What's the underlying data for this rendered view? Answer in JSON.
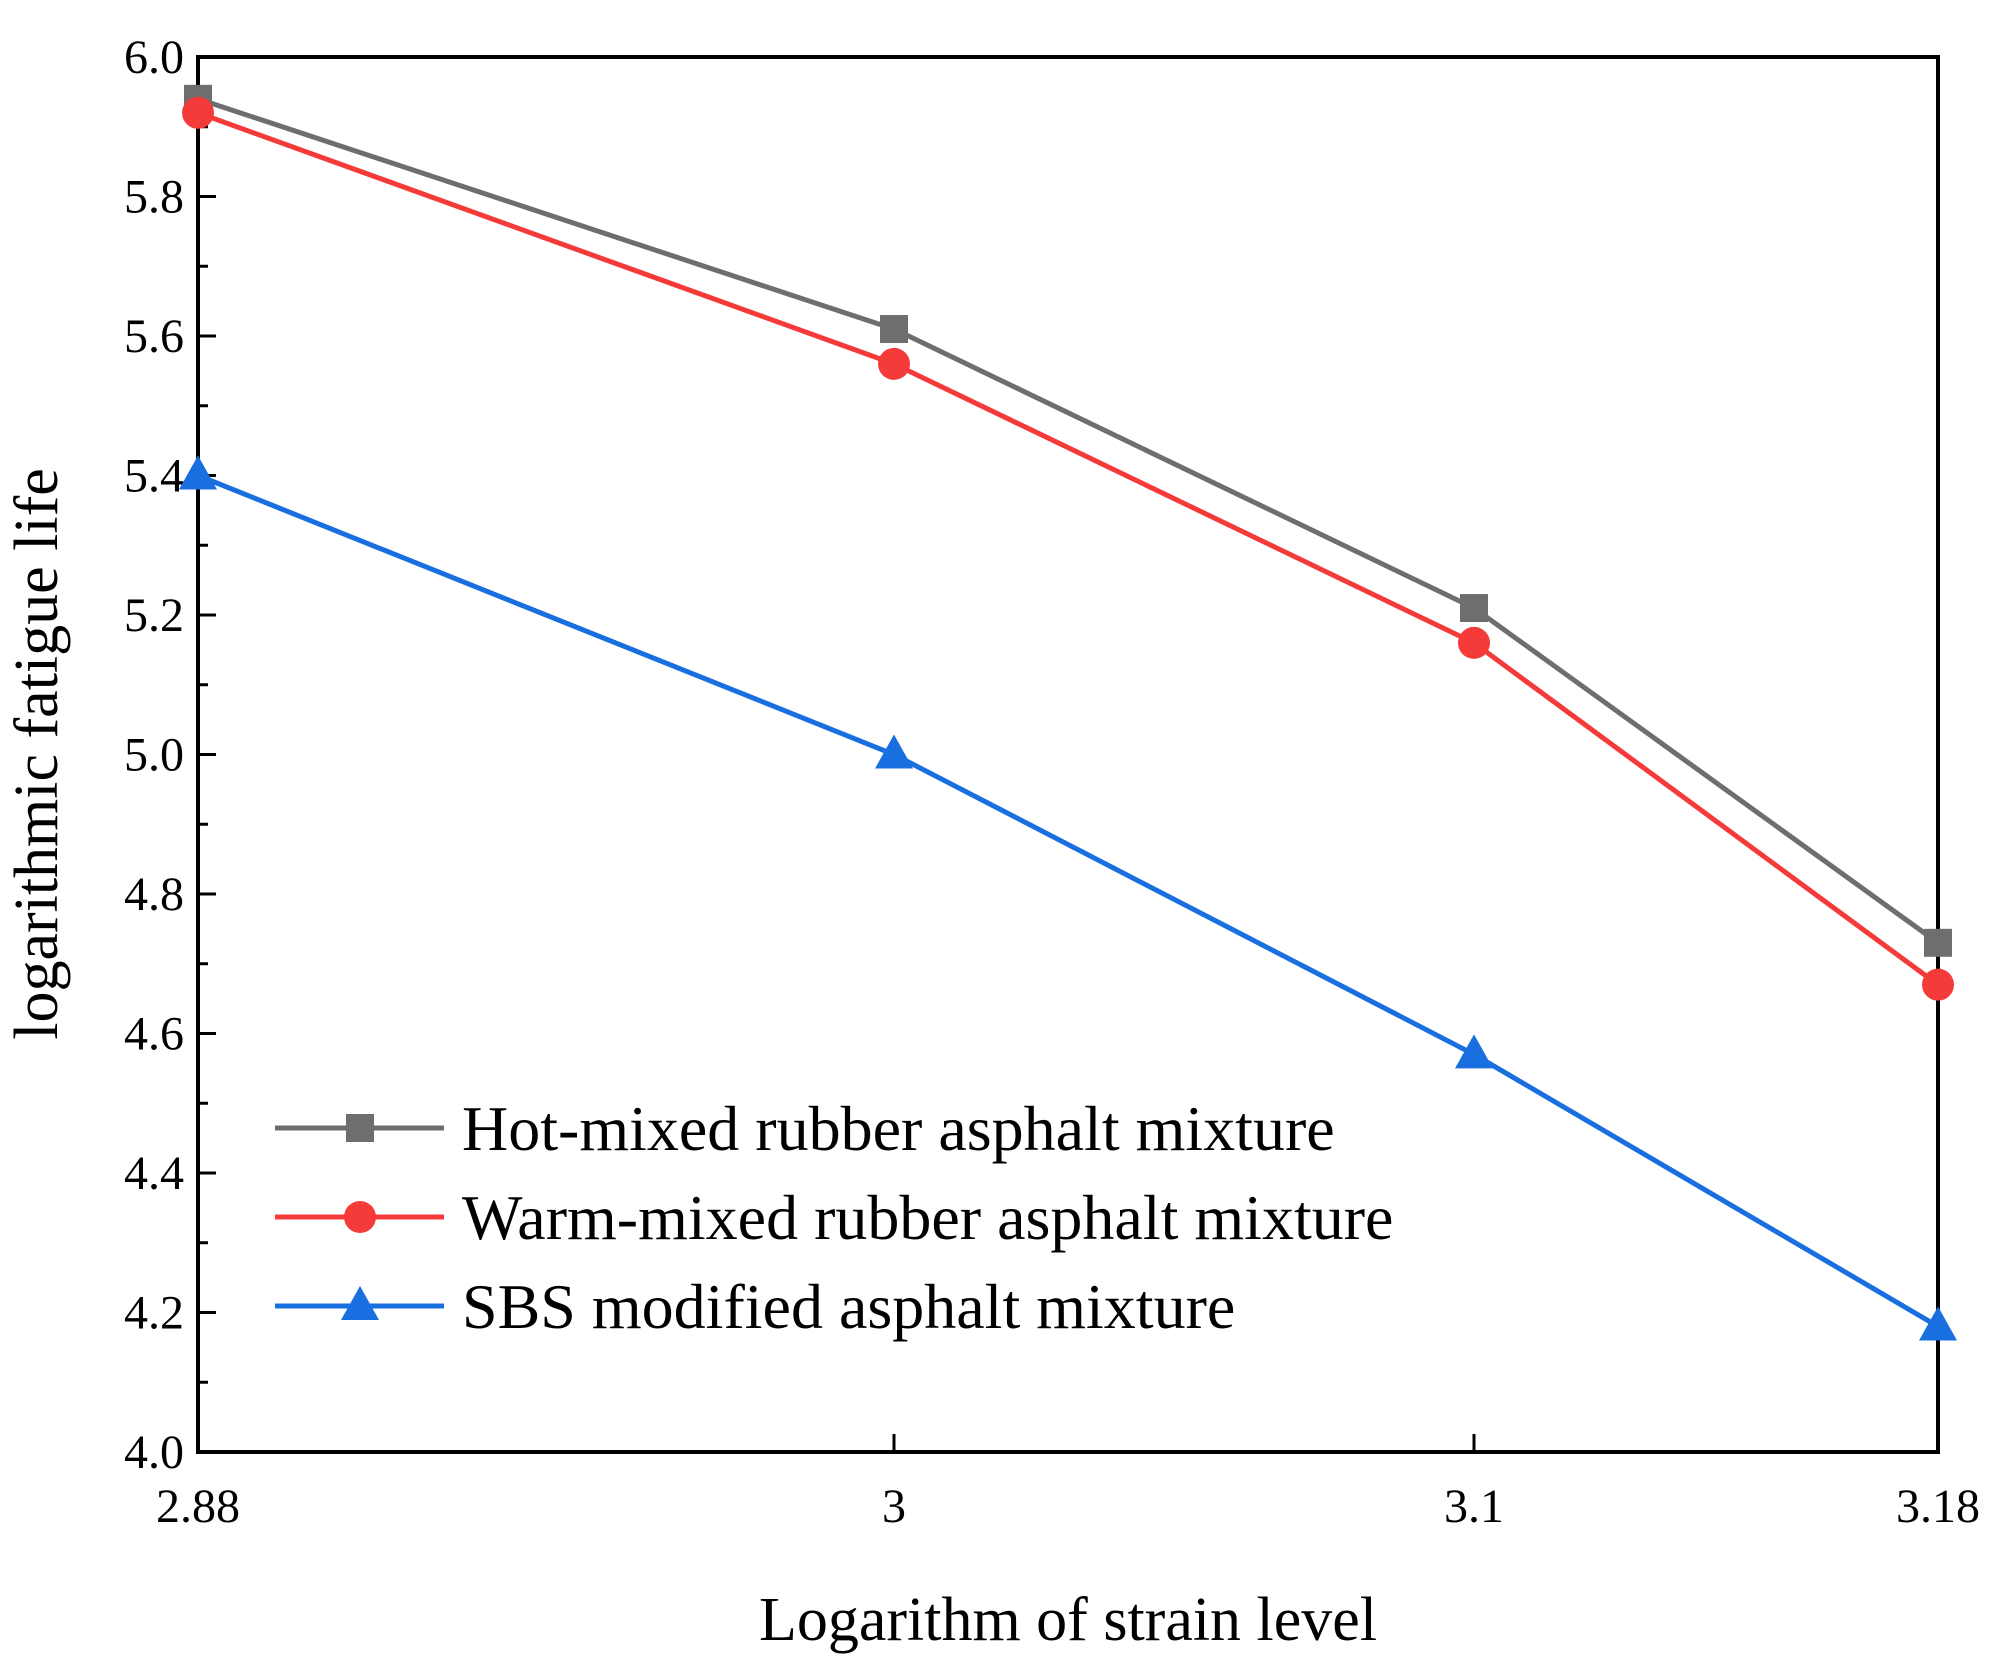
{
  "chart_data": {
    "type": "line",
    "title": "",
    "xlabel": "Logarithm of strain level",
    "ylabel": "logarithmic fatigue life",
    "xlim": [
      2.88,
      3.18
    ],
    "ylim": [
      4.0,
      6.0
    ],
    "x": [
      2.88,
      3,
      3.1,
      3.18
    ],
    "x_tick_labels": [
      "2.88",
      "3",
      "3.1",
      "3.18"
    ],
    "y_ticks": [
      4.0,
      4.2,
      4.4,
      4.6,
      4.8,
      5.0,
      5.2,
      5.4,
      5.6,
      5.8,
      6.0
    ],
    "y_tick_labels": [
      "4.0",
      "4.2",
      "4.4",
      "4.6",
      "4.8",
      "5.0",
      "5.2",
      "5.4",
      "5.6",
      "5.8",
      "6.0"
    ],
    "grid": false,
    "legend_position": "bottom-left",
    "series": [
      {
        "name": "Hot-mixed rubber asphalt mixture",
        "values": [
          5.94,
          5.61,
          5.21,
          4.73
        ],
        "color": "#6e6e6e",
        "marker": "square"
      },
      {
        "name": "Warm-mixed rubber asphalt mixture",
        "values": [
          5.92,
          5.56,
          5.16,
          4.67
        ],
        "color": "#f53a3a",
        "marker": "circle"
      },
      {
        "name": "SBS modified asphalt mixture",
        "values": [
          5.4,
          5.0,
          4.57,
          4.18
        ],
        "color": "#1a6fe0",
        "marker": "triangle"
      }
    ]
  }
}
